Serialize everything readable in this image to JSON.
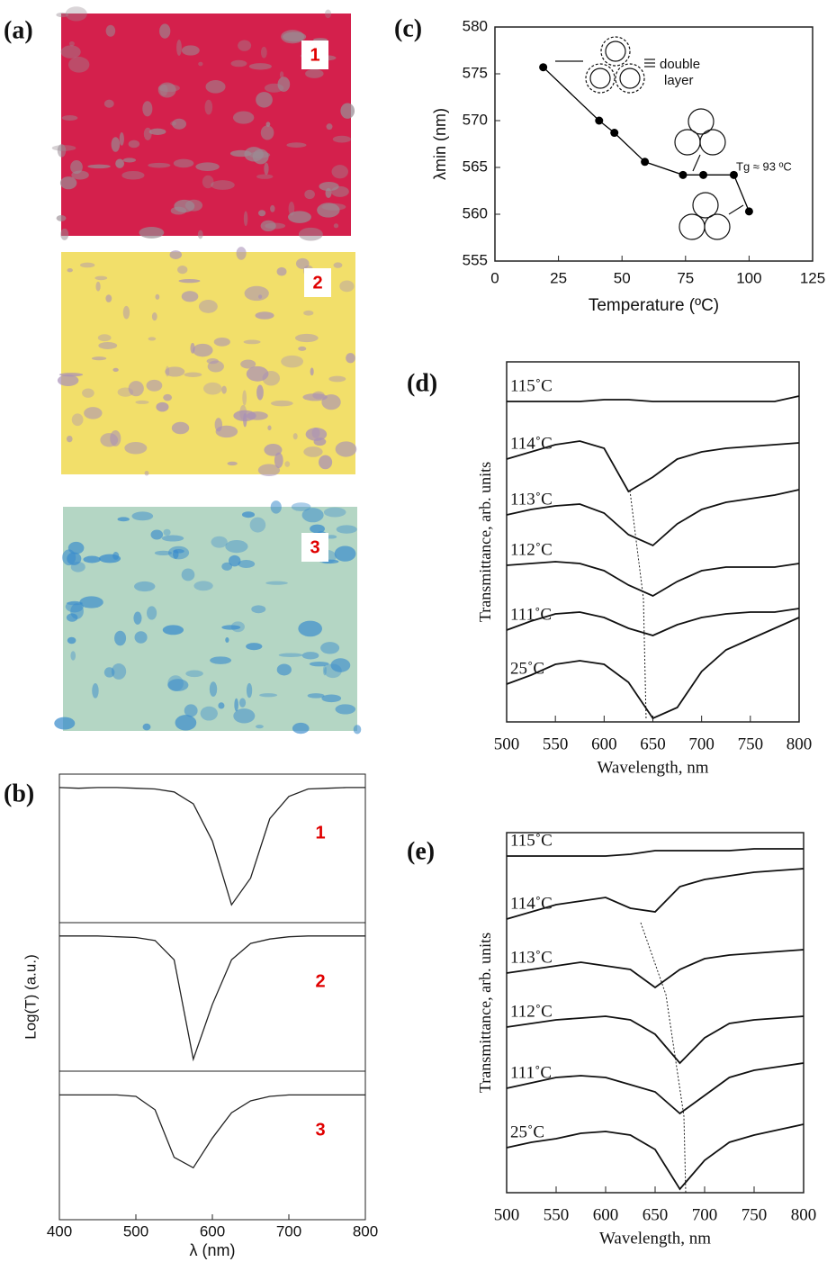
{
  "panel_labels": [
    "(a)",
    "(b)",
    "(c)",
    "(d)",
    "(e)"
  ],
  "photos": [
    {
      "label": "1",
      "color": "#d4204c",
      "spot": "#9a8c94"
    },
    {
      "label": "2",
      "color": "#f2df6a",
      "spot": "#a890b8"
    },
    {
      "label": "3",
      "color": "#b4d6c4",
      "spot": "#3a8ccc"
    }
  ],
  "chart_data": [
    {
      "type": "spectra-stack",
      "xlabel": "λ (nm)",
      "ylabel": "Log(T) (a.u.)",
      "xlim": [
        400,
        800
      ],
      "xticks": [
        400,
        500,
        600,
        700,
        800
      ],
      "ylim": [
        0,
        100
      ],
      "label_color": "#e00000",
      "x": [
        400,
        425,
        450,
        475,
        500,
        525,
        550,
        575,
        600,
        625,
        650,
        675,
        700,
        725,
        750,
        775,
        800
      ],
      "panels": [
        {
          "label": "1",
          "values": [
            91,
            90.5,
            91,
            91,
            90.5,
            90,
            88,
            80,
            55,
            12,
            30,
            70,
            85,
            90,
            90.5,
            91,
            91
          ]
        },
        {
          "label": "2",
          "values": [
            91,
            91,
            91,
            90.5,
            90,
            88,
            75,
            8,
            45,
            75,
            86,
            89,
            90.5,
            91,
            91,
            91,
            91
          ]
        },
        {
          "label": "3",
          "values": [
            84,
            84,
            84,
            84,
            83,
            74,
            42,
            35,
            55,
            72,
            80,
            83,
            84,
            84,
            84,
            84,
            84
          ]
        }
      ]
    },
    {
      "type": "line",
      "xlabel": "Temperature (ºC)",
      "ylabel": "λmin (nm)",
      "xlim": [
        0,
        125
      ],
      "ylim": [
        555,
        580
      ],
      "xticks": [
        0,
        25,
        50,
        75,
        100,
        125
      ],
      "yticks": [
        555,
        560,
        565,
        570,
        575,
        580
      ],
      "x": [
        19,
        41,
        47,
        59,
        74,
        82,
        94,
        100
      ],
      "values": [
        575.7,
        570,
        568.7,
        565.6,
        564.2,
        564.2,
        564.2,
        560.3
      ],
      "color": "#000000",
      "annotations": [
        "double",
        "layer",
        "Tg ≈ 93 ºC"
      ]
    },
    {
      "type": "spectra",
      "xlabel": "Wavelength, nm",
      "ylabel": "Transmittance, arb. units",
      "xlim": [
        500,
        800
      ],
      "xticks": [
        500,
        550,
        600,
        650,
        700,
        750,
        800
      ],
      "ylim": [
        0,
        100
      ],
      "color": "#111111",
      "x": [
        500,
        525,
        550,
        575,
        600,
        625,
        650,
        675,
        700,
        725,
        750,
        775,
        800
      ],
      "series": [
        {
          "name": "115˚C",
          "values": [
            89,
            89,
            89,
            89,
            89.5,
            89.5,
            89,
            89,
            89,
            89,
            89,
            89,
            90.5
          ]
        },
        {
          "name": "114˚C",
          "values": [
            73,
            75,
            77,
            78,
            76,
            64,
            68,
            73,
            75,
            76,
            76.5,
            77,
            77.5
          ]
        },
        {
          "name": "113˚C",
          "values": [
            57.5,
            59,
            60,
            60.5,
            58,
            52,
            49,
            55,
            59,
            61,
            62,
            63,
            64.5
          ]
        },
        {
          "name": "112˚C",
          "values": [
            43.5,
            44,
            44.5,
            44,
            42,
            38,
            35,
            39,
            42,
            43,
            43,
            43,
            44
          ]
        },
        {
          "name": "111˚C",
          "values": [
            25.5,
            28,
            30,
            30.5,
            29,
            26,
            24,
            27,
            29,
            30,
            30.5,
            30.5,
            31.5
          ]
        },
        {
          "name": "25˚C",
          "values": [
            10.5,
            13,
            16,
            17,
            16,
            11,
            1,
            4,
            14,
            20,
            23,
            26,
            29
          ]
        }
      ]
    },
    {
      "type": "spectra",
      "xlabel": "Wavelength, nm",
      "ylabel": "Transmittance, arb. units",
      "xlim": [
        500,
        800
      ],
      "xticks": [
        500,
        550,
        600,
        650,
        700,
        750,
        800
      ],
      "ylim": [
        0,
        100
      ],
      "color": "#111111",
      "x": [
        500,
        525,
        550,
        575,
        600,
        625,
        650,
        675,
        700,
        725,
        750,
        775,
        800
      ],
      "series": [
        {
          "name": "115˚C",
          "values": [
            93.5,
            93.5,
            93.5,
            93.5,
            93.5,
            94,
            95,
            95,
            95,
            95,
            95.5,
            95.5,
            95.5
          ]
        },
        {
          "name": "114˚C",
          "values": [
            76,
            78,
            80,
            81,
            82,
            79,
            78,
            85,
            87,
            88,
            89,
            89.5,
            90
          ]
        },
        {
          "name": "113˚C",
          "values": [
            61,
            62,
            63,
            64,
            63,
            62,
            57,
            62,
            65,
            66,
            66.5,
            67,
            67.5
          ]
        },
        {
          "name": "112˚C",
          "values": [
            46,
            47,
            48,
            48.5,
            49,
            48,
            44,
            36,
            43,
            47,
            48,
            48.5,
            49
          ]
        },
        {
          "name": "111˚C",
          "values": [
            29,
            30.5,
            32,
            32.5,
            32,
            30,
            28,
            22,
            27,
            32,
            34,
            35,
            36
          ]
        },
        {
          "name": "25˚C",
          "values": [
            12.5,
            14,
            15,
            16.5,
            17,
            16,
            12,
            1,
            9,
            14,
            16,
            17.5,
            19
          ]
        }
      ]
    }
  ]
}
